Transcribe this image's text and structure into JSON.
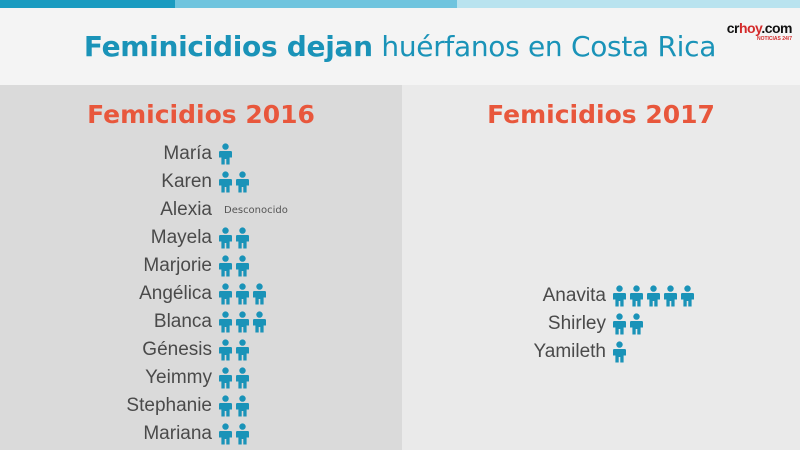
{
  "colors": {
    "accent": "#1a93b8",
    "title_red": "#e8573c",
    "child_icon": "#1a93b8"
  },
  "title": {
    "bold": "Feminicidios dejan",
    "light": "huérfanos en Costa Rica"
  },
  "logo": {
    "main_a": "cr",
    "main_b": "hoy",
    "main_c": ".com",
    "tagline": "NOTICIAS 24/7"
  },
  "chart_data": [
    {
      "type": "table",
      "title": "Femicidios 2016",
      "series_label": "",
      "rows": [
        {
          "name": "María",
          "children": 1,
          "note": ""
        },
        {
          "name": "Karen",
          "children": 2,
          "note": ""
        },
        {
          "name": "Alexia",
          "children": null,
          "note": "Desconocido"
        },
        {
          "name": "Mayela",
          "children": 2,
          "note": ""
        },
        {
          "name": "Marjorie",
          "children": 2,
          "note": ""
        },
        {
          "name": "Angélica",
          "children": 3,
          "note": ""
        },
        {
          "name": "Blanca",
          "children": 3,
          "note": ""
        },
        {
          "name": "Génesis",
          "children": 2,
          "note": ""
        },
        {
          "name": "Yeimmy",
          "children": 2,
          "note": ""
        },
        {
          "name": "Stephanie",
          "children": 2,
          "note": ""
        },
        {
          "name": "Mariana",
          "children": 2,
          "note": ""
        }
      ]
    },
    {
      "type": "table",
      "title": "Femicidios 2017",
      "rows": [
        {
          "name": "Anavita",
          "children": 5,
          "note": ""
        },
        {
          "name": "Shirley",
          "children": 2,
          "note": ""
        },
        {
          "name": "Yamileth",
          "children": 1,
          "note": ""
        }
      ]
    }
  ]
}
